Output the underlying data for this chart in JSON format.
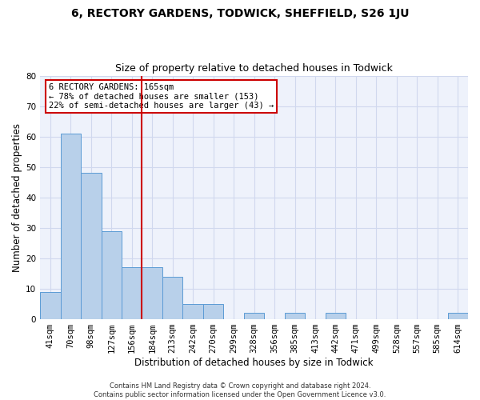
{
  "title": "6, RECTORY GARDENS, TODWICK, SHEFFIELD, S26 1JU",
  "subtitle": "Size of property relative to detached houses in Todwick",
  "xlabel": "Distribution of detached houses by size in Todwick",
  "ylabel": "Number of detached properties",
  "categories": [
    "41sqm",
    "70sqm",
    "98sqm",
    "127sqm",
    "156sqm",
    "184sqm",
    "213sqm",
    "242sqm",
    "270sqm",
    "299sqm",
    "328sqm",
    "356sqm",
    "385sqm",
    "413sqm",
    "442sqm",
    "471sqm",
    "499sqm",
    "528sqm",
    "557sqm",
    "585sqm",
    "614sqm"
  ],
  "values": [
    9,
    61,
    48,
    29,
    17,
    17,
    14,
    5,
    5,
    0,
    2,
    0,
    2,
    0,
    2,
    0,
    0,
    0,
    0,
    0,
    2
  ],
  "bar_color": "#b8d0ea",
  "bar_edge_color": "#5b9bd5",
  "annotation_text": "6 RECTORY GARDENS: 165sqm\n← 78% of detached houses are smaller (153)\n22% of semi-detached houses are larger (43) →",
  "annotation_box_color": "#ffffff",
  "annotation_box_edge": "#cc0000",
  "property_line_color": "#cc0000",
  "ylim": [
    0,
    80
  ],
  "yticks": [
    0,
    10,
    20,
    30,
    40,
    50,
    60,
    70,
    80
  ],
  "footer": "Contains HM Land Registry data © Crown copyright and database right 2024.\nContains public sector information licensed under the Open Government Licence v3.0.",
  "bg_color": "#eef2fb",
  "grid_color": "#d0d8ee",
  "title_fontsize": 10,
  "subtitle_fontsize": 9,
  "xlabel_fontsize": 8.5,
  "ylabel_fontsize": 8.5,
  "tick_fontsize": 7.5,
  "footer_fontsize": 6.0
}
